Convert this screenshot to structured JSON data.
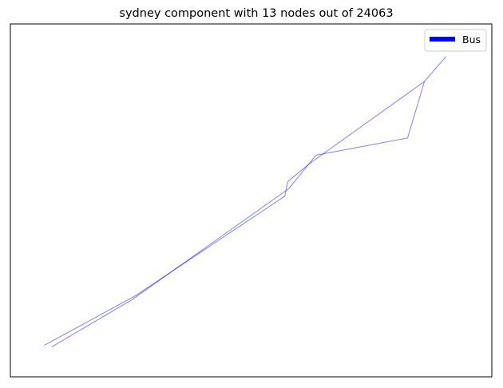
{
  "chart_data": {
    "type": "line",
    "title": "sydney component with 13 nodes out of 24063",
    "xlabel": "",
    "ylabel": "",
    "axes_visible": false,
    "grid": false,
    "legend_placement": "top-right",
    "xlim": [
      0,
      1
    ],
    "ylim": [
      0,
      1
    ],
    "series": [
      {
        "name": "Bus",
        "color": "#0000ff",
        "line_alpha": 0.5,
        "segments": [
          [
            [
              0.086,
              0.085
            ],
            [
              0.253,
              0.219
            ],
            [
              0.578,
              0.533
            ],
            [
              0.635,
              0.628
            ],
            [
              0.825,
              0.677
            ],
            [
              0.86,
              0.837
            ]
          ],
          [
            [
              0.07,
              0.089
            ],
            [
              0.26,
              0.23
            ],
            [
              0.57,
              0.512
            ],
            [
              0.576,
              0.553
            ],
            [
              0.62,
              0.603
            ],
            [
              0.86,
              0.837
            ]
          ],
          [
            [
              0.86,
              0.837
            ],
            [
              0.905,
              0.908
            ]
          ]
        ]
      }
    ]
  }
}
